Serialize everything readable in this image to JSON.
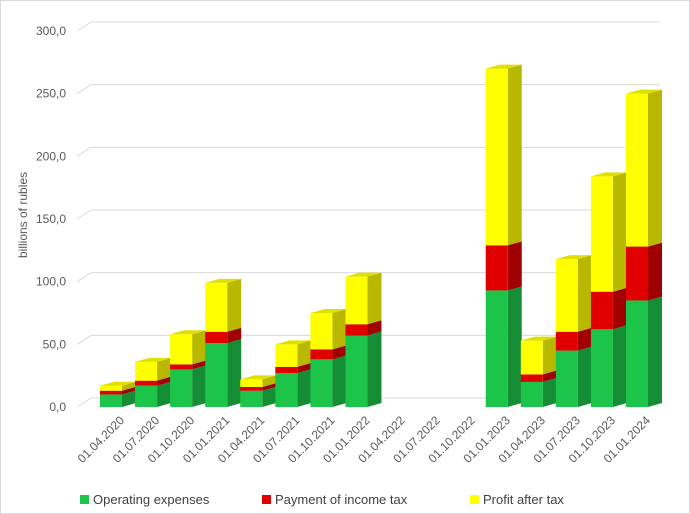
{
  "chart_data": {
    "type": "bar",
    "stacked": true,
    "style": "3d-column",
    "title": "",
    "xlabel": "",
    "ylabel": "billions of rubles",
    "ylim": [
      0,
      300
    ],
    "yticks": [
      "0,0",
      "50,0",
      "100,0",
      "150,0",
      "200,0",
      "250,0",
      "300,0"
    ],
    "gridlines": true,
    "legend_position": "bottom",
    "categories": [
      "01.04.2020",
      "01.07.2020",
      "01.10.2020",
      "01.01.2021",
      "01.04.2021",
      "01.07.2021",
      "01.10.2021",
      "01.01.2022",
      "01.04.2022",
      "01.07.2022",
      "01.10.2022",
      "01.01.2023",
      "01.04.2023",
      "01.07.2023",
      "01.10.2023",
      "01.01.2024"
    ],
    "series": [
      {
        "name": "Operating expenses",
        "color": "#1cc44a",
        "values": [
          10,
          17,
          30,
          51,
          13,
          27,
          38,
          57,
          null,
          null,
          null,
          93,
          20,
          45,
          62,
          85
        ]
      },
      {
        "name": "Payment of income tax",
        "color": "#e00000",
        "values": [
          3,
          4,
          4,
          9,
          3,
          5,
          8,
          9,
          null,
          null,
          null,
          36,
          6,
          15,
          30,
          43
        ]
      },
      {
        "name": "Profit after tax",
        "color": "#ffff00",
        "values": [
          4,
          15,
          24,
          39,
          6,
          18,
          29,
          38,
          null,
          null,
          null,
          141,
          27,
          58,
          92,
          122
        ]
      }
    ]
  }
}
